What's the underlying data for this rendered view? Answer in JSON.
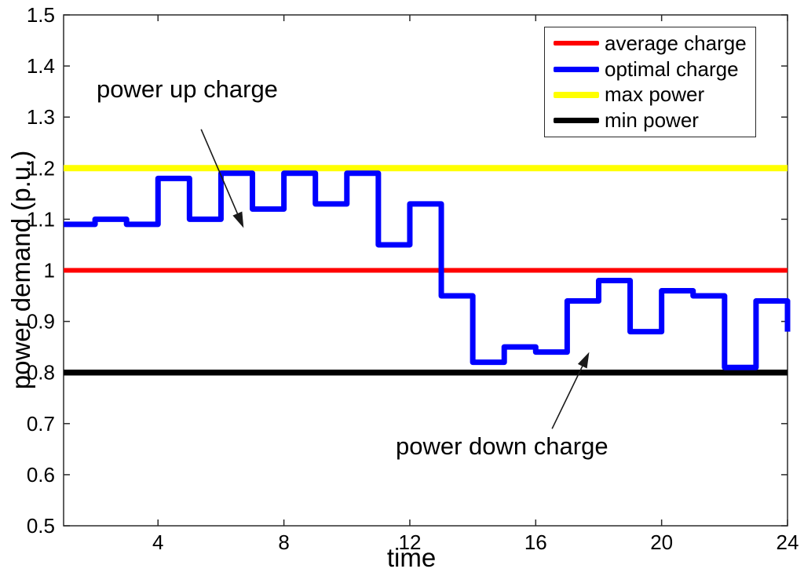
{
  "figure": {
    "background": "#ffffff"
  },
  "chart_data": {
    "type": "line",
    "subtype": "stairs",
    "title": "",
    "xlabel": "time",
    "ylabel": "power demand (p.u.)",
    "xlim": [
      1,
      24
    ],
    "ylim": [
      0.5,
      1.5
    ],
    "grid": false,
    "legend_position": "top-right",
    "xticks": {
      "values": [
        4,
        8,
        12,
        16,
        20,
        24
      ],
      "labels": [
        "4",
        "8",
        "12",
        "16",
        "20",
        "24"
      ]
    },
    "yticks": {
      "values": [
        0.5,
        0.6,
        0.7,
        0.8,
        0.9,
        1.0,
        1.1,
        1.2,
        1.3,
        1.4,
        1.5
      ],
      "labels": [
        "0.5",
        "0.6",
        "0.7",
        "0.8",
        "0.9",
        "1",
        "1.1",
        "1.2",
        "1.3",
        "1.4",
        "1.5"
      ]
    },
    "x": [
      1,
      2,
      3,
      4,
      5,
      6,
      7,
      8,
      9,
      10,
      11,
      12,
      13,
      14,
      15,
      16,
      17,
      18,
      19,
      20,
      21,
      22,
      23,
      24
    ],
    "series": [
      {
        "name": "average charge",
        "type": "hline",
        "y": 1.0,
        "color": "#ff0000"
      },
      {
        "name": "optimal charge",
        "type": "stairs",
        "color": "#0000ff",
        "values": [
          1.09,
          1.1,
          1.09,
          1.18,
          1.1,
          1.19,
          1.12,
          1.19,
          1.13,
          1.19,
          1.05,
          1.13,
          0.95,
          0.82,
          0.85,
          0.84,
          0.94,
          0.98,
          0.88,
          0.96,
          0.95,
          0.81,
          0.94,
          0.88
        ]
      },
      {
        "name": "max power",
        "type": "hline",
        "y": 1.2,
        "color": "#ffff00"
      },
      {
        "name": "min power",
        "type": "hline",
        "y": 0.8,
        "color": "#000000"
      }
    ],
    "annotations": [
      {
        "text": "power up charge",
        "arrow_from": [
          5.37,
          1.276
        ],
        "arrow_to": [
          6.72,
          1.083
        ]
      },
      {
        "text": "power down charge",
        "arrow_from": [
          16.52,
          0.69
        ],
        "arrow_to": [
          17.7,
          0.84
        ]
      }
    ]
  },
  "legend": {
    "items": [
      {
        "label": "average charge",
        "color": "#ff0000"
      },
      {
        "label": "optimal charge",
        "color": "#0000ff"
      },
      {
        "label": "max power",
        "color": "#ffff00"
      },
      {
        "label": "min power",
        "color": "#000000"
      }
    ]
  }
}
